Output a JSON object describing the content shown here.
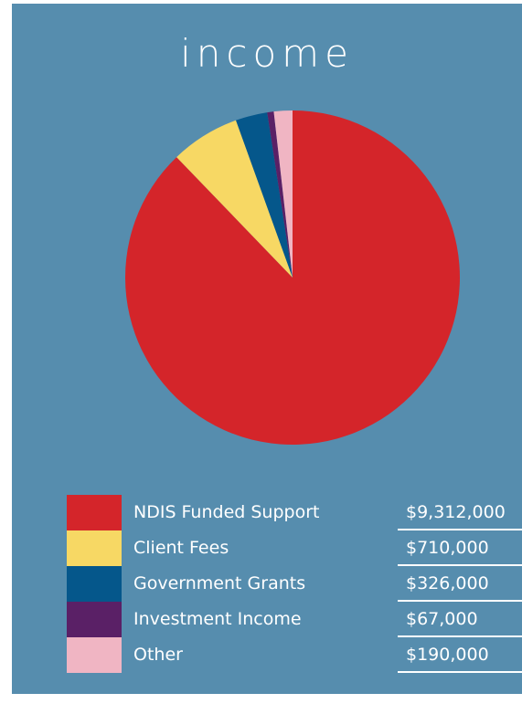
{
  "chart_data": {
    "type": "pie",
    "title": "income",
    "categories": [
      "NDIS Funded Support",
      "Client Fees",
      "Government Grants",
      "Investment Income",
      "Other"
    ],
    "values": [
      9312000,
      710000,
      326000,
      67000,
      190000
    ],
    "value_labels": [
      "$9,312,000",
      "$710,000",
      "$326,000",
      "$67,000",
      "$190,000"
    ],
    "colors": [
      "#d4252a",
      "#f7d864",
      "#05578b",
      "#5a2066",
      "#f0b5c3"
    ],
    "start": "12 o'clock",
    "direction": "clockwise",
    "legend_position": "bottom"
  },
  "page": {
    "background": "#568dae"
  }
}
